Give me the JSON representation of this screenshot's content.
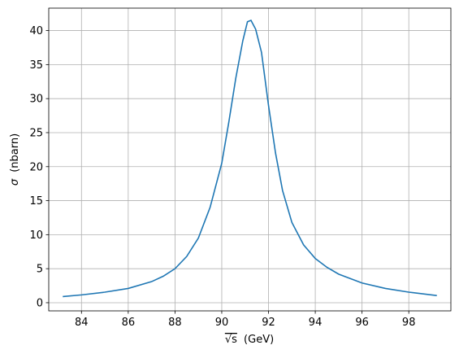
{
  "chart_data": {
    "type": "line",
    "title": "",
    "xlabel": "(GeV)",
    "xlabel_sqrt_symbol": "√s",
    "ylabel": "(nbarn)",
    "ylabel_symbol": "σ",
    "xlim": [
      82.6,
      99.8
    ],
    "ylim": [
      -1.2,
      43.3
    ],
    "xticks": [
      84,
      86,
      88,
      90,
      92,
      94,
      96,
      98
    ],
    "yticks": [
      0,
      5,
      10,
      15,
      20,
      25,
      30,
      35,
      40
    ],
    "grid": true,
    "line_color": "#1f77b4",
    "series": [
      {
        "x": [
          83.2,
          84.0,
          85.0,
          86.0,
          87.0,
          87.5,
          88.0,
          88.5,
          89.0,
          89.5,
          90.0,
          90.3,
          90.6,
          90.9,
          91.1,
          91.25,
          91.45,
          91.7,
          92.0,
          92.3,
          92.6,
          93.0,
          93.5,
          94.0,
          94.5,
          95.0,
          96.0,
          97.0,
          98.0,
          99.2
        ],
        "y": [
          0.9,
          1.15,
          1.55,
          2.1,
          3.1,
          3.9,
          5.0,
          6.8,
          9.5,
          14.0,
          20.5,
          26.5,
          33.0,
          38.5,
          41.3,
          41.5,
          40.2,
          36.8,
          29.0,
          22.0,
          16.5,
          11.8,
          8.5,
          6.5,
          5.2,
          4.2,
          2.9,
          2.1,
          1.55,
          1.05
        ]
      }
    ]
  }
}
